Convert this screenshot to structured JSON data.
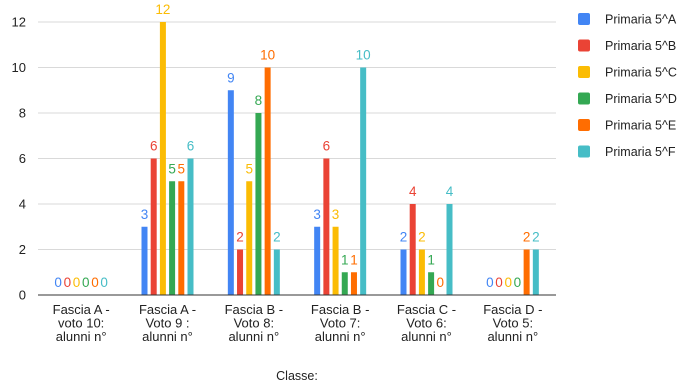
{
  "chart_data": {
    "type": "bar",
    "title": "",
    "xlabel": "Classe:",
    "ylabel": "",
    "ylim": [
      0,
      12
    ],
    "yticks": [
      0,
      2,
      4,
      6,
      8,
      10,
      12
    ],
    "grid": true,
    "legend_position": "right",
    "categories": [
      [
        "Fascia A -",
        "voto 10:",
        "alunni n°"
      ],
      [
        "Fascia A -",
        "Voto 9 :",
        "alunni n°"
      ],
      [
        "Fascia B -",
        "Voto 8:",
        "alunni n°"
      ],
      [
        "Fascia B -",
        "Voto 7:",
        "alunni n°"
      ],
      [
        "Fascia C -",
        "Voto 6:",
        "alunni n°"
      ],
      [
        "Fascia D -",
        "Voto 5:",
        "alunni n°"
      ]
    ],
    "series": [
      {
        "name": "Primaria 5^A",
        "color": "#4285f4",
        "values": [
          0,
          3,
          9,
          3,
          2,
          0
        ]
      },
      {
        "name": "Primaria 5^B",
        "color": "#ea4335",
        "values": [
          0,
          6,
          2,
          6,
          4,
          0
        ]
      },
      {
        "name": "Primaria 5^C",
        "color": "#fbbc04",
        "values": [
          0,
          12,
          5,
          3,
          2,
          0
        ]
      },
      {
        "name": "Primaria 5^D",
        "color": "#34a853",
        "values": [
          0,
          5,
          8,
          1,
          1,
          0
        ]
      },
      {
        "name": "Primaria 5^E",
        "color": "#ff6d01",
        "values": [
          0,
          5,
          10,
          1,
          0,
          2
        ]
      },
      {
        "name": "Primaria 5^F",
        "color": "#46bdc6",
        "values": [
          0,
          6,
          2,
          10,
          4,
          2
        ]
      }
    ]
  }
}
